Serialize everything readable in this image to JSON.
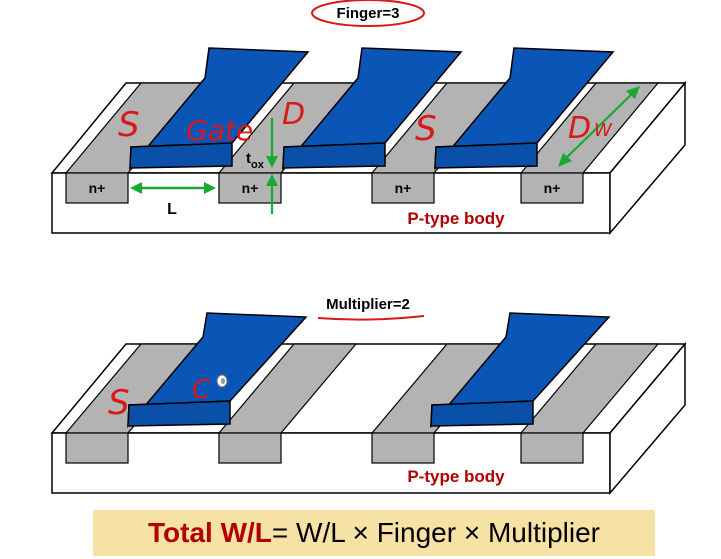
{
  "top": {
    "finger_label": "Finger=3",
    "n_plus": [
      "n+",
      "n+",
      "n+",
      "n+"
    ],
    "body_label": "P-type body",
    "length_label": "L",
    "tox_label": "t",
    "tox_sub": "ox",
    "ink": {
      "source1": "S",
      "gate": "Gate",
      "drain1": "D",
      "source2": "S",
      "drain2": "D",
      "width": "W"
    }
  },
  "bottom": {
    "multiplier_label": "Multiplier=2",
    "body_label": "P-type body",
    "ink": {
      "source": "S",
      "scribble": "C"
    }
  },
  "formula": {
    "lhs": "Total W/L",
    "rhs": " = W/L × Finger × Multiplier"
  },
  "colors": {
    "gate_blue": "#0a55b5",
    "gate_top": "#1c68c7",
    "diffusion_gray": "#b3b3b3",
    "annotation_red": "#d71919",
    "arrow_green": "#1aa832",
    "formula_bg": "#f7e2a5"
  }
}
